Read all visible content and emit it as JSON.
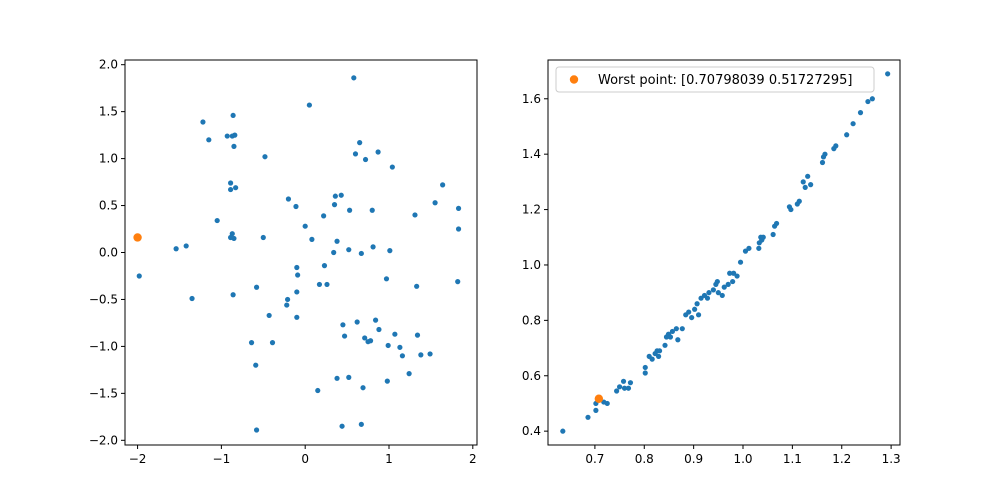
{
  "chart_data": [
    {
      "type": "scatter",
      "title": "",
      "xlabel": "",
      "ylabel": "",
      "xlim": [
        -2.15,
        2.05
      ],
      "ylim": [
        -2.05,
        2.05
      ],
      "xticks": [
        -2,
        -1,
        0,
        1,
        2
      ],
      "xtick_labels": [
        "−2",
        "−1",
        "0",
        "1",
        "2"
      ],
      "yticks": [
        -2.0,
        -1.5,
        -1.0,
        -0.5,
        0.0,
        0.5,
        1.0,
        1.5,
        2.0
      ],
      "ytick_labels": [
        "−2.0",
        "−1.5",
        "−1.0",
        "−0.5",
        "0.0",
        "0.5",
        "1.0",
        "1.5",
        "2.0"
      ],
      "grid": false,
      "series": [
        {
          "color": "#1f77b4",
          "points": [
            [
              0.58,
              1.86
            ],
            [
              0.05,
              1.57
            ],
            [
              -0.86,
              1.46
            ],
            [
              -1.22,
              1.39
            ],
            [
              -0.84,
              1.25
            ],
            [
              -0.87,
              1.24
            ],
            [
              -0.93,
              1.24
            ],
            [
              -1.15,
              1.2
            ],
            [
              0.65,
              1.17
            ],
            [
              -0.85,
              1.13
            ],
            [
              0.87,
              1.07
            ],
            [
              0.6,
              1.05
            ],
            [
              -0.48,
              1.02
            ],
            [
              0.72,
              0.99
            ],
            [
              1.04,
              0.91
            ],
            [
              1.64,
              0.72
            ],
            [
              -0.89,
              0.74
            ],
            [
              -0.83,
              0.69
            ],
            [
              -0.89,
              0.67
            ],
            [
              0.43,
              0.61
            ],
            [
              0.36,
              0.6
            ],
            [
              -0.2,
              0.57
            ],
            [
              1.55,
              0.53
            ],
            [
              0.35,
              0.51
            ],
            [
              -0.11,
              0.49
            ],
            [
              1.83,
              0.47
            ],
            [
              0.53,
              0.45
            ],
            [
              0.8,
              0.45
            ],
            [
              1.31,
              0.4
            ],
            [
              0.22,
              0.39
            ],
            [
              -1.05,
              0.34
            ],
            [
              0.0,
              0.28
            ],
            [
              1.83,
              0.25
            ],
            [
              -0.87,
              0.2
            ],
            [
              -0.89,
              0.16
            ],
            [
              -0.85,
              0.15
            ],
            [
              -0.5,
              0.16
            ],
            [
              0.08,
              0.14
            ],
            [
              0.38,
              0.12
            ],
            [
              0.81,
              0.06
            ],
            [
              1.01,
              0.02
            ],
            [
              -1.54,
              0.04
            ],
            [
              -1.42,
              0.07
            ],
            [
              0.52,
              0.03
            ],
            [
              0.34,
              0.0
            ],
            [
              0.67,
              -0.01
            ],
            [
              -0.1,
              -0.16
            ],
            [
              0.23,
              -0.14
            ],
            [
              -1.98,
              -0.25
            ],
            [
              -0.09,
              -0.24
            ],
            [
              0.97,
              -0.28
            ],
            [
              1.82,
              -0.31
            ],
            [
              0.17,
              -0.34
            ],
            [
              0.26,
              -0.34
            ],
            [
              -0.58,
              -0.37
            ],
            [
              1.33,
              -0.36
            ],
            [
              -0.1,
              -0.42
            ],
            [
              -0.86,
              -0.45
            ],
            [
              -1.35,
              -0.49
            ],
            [
              -0.21,
              -0.5
            ],
            [
              -0.22,
              -0.56
            ],
            [
              -0.43,
              -0.67
            ],
            [
              -0.1,
              -0.69
            ],
            [
              0.84,
              -0.72
            ],
            [
              0.62,
              -0.74
            ],
            [
              0.45,
              -0.77
            ],
            [
              0.88,
              -0.82
            ],
            [
              1.07,
              -0.87
            ],
            [
              0.47,
              -0.89
            ],
            [
              1.34,
              -0.88
            ],
            [
              0.71,
              -0.91
            ],
            [
              0.75,
              -0.95
            ],
            [
              0.78,
              -0.94
            ],
            [
              -0.64,
              -0.96
            ],
            [
              -0.39,
              -0.96
            ],
            [
              0.99,
              -0.99
            ],
            [
              1.13,
              -1.01
            ],
            [
              1.16,
              -1.1
            ],
            [
              1.49,
              -1.08
            ],
            [
              1.38,
              -1.09
            ],
            [
              -0.59,
              -1.2
            ],
            [
              1.24,
              -1.29
            ],
            [
              0.52,
              -1.33
            ],
            [
              0.38,
              -1.34
            ],
            [
              0.69,
              -1.44
            ],
            [
              0.98,
              -1.37
            ],
            [
              0.15,
              -1.47
            ],
            [
              0.44,
              -1.85
            ],
            [
              0.67,
              -1.83
            ],
            [
              -0.58,
              -1.89
            ]
          ]
        },
        {
          "color": "#ff7f0e",
          "points": [
            [
              -2.0,
              0.16
            ]
          ]
        }
      ]
    },
    {
      "type": "scatter",
      "title": "",
      "xlabel": "",
      "ylabel": "",
      "xlim": [
        0.605,
        1.318
      ],
      "ylim": [
        0.35,
        1.74
      ],
      "xticks": [
        0.7,
        0.8,
        0.9,
        1.0,
        1.1,
        1.2,
        1.3
      ],
      "xtick_labels": [
        "0.7",
        "0.8",
        "0.9",
        "1.0",
        "1.1",
        "1.2",
        "1.3"
      ],
      "yticks": [
        0.4,
        0.6,
        0.8,
        1.0,
        1.2,
        1.4,
        1.6
      ],
      "ytick_labels": [
        "0.4",
        "0.6",
        "0.8",
        "1.0",
        "1.2",
        "1.4",
        "1.6"
      ],
      "grid": false,
      "legend": {
        "placement": "upper-left",
        "entries": [
          {
            "label": "Worst point: [0.70798039 0.51727295]",
            "color": "#ff7f0e"
          }
        ]
      },
      "series": [
        {
          "color": "#1f77b4",
          "points": [
            [
              0.635,
              0.4
            ],
            [
              0.686,
              0.45
            ],
            [
              0.702,
              0.475
            ],
            [
              0.702,
              0.5
            ],
            [
              0.718,
              0.505
            ],
            [
              0.725,
              0.5
            ],
            [
              0.744,
              0.545
            ],
            [
              0.75,
              0.56
            ],
            [
              0.758,
              0.58
            ],
            [
              0.76,
              0.555
            ],
            [
              0.768,
              0.555
            ],
            [
              0.772,
              0.575
            ],
            [
              0.802,
              0.61
            ],
            [
              0.802,
              0.63
            ],
            [
              0.81,
              0.67
            ],
            [
              0.816,
              0.66
            ],
            [
              0.822,
              0.68
            ],
            [
              0.826,
              0.69
            ],
            [
              0.831,
              0.69
            ],
            [
              0.829,
              0.67
            ],
            [
              0.842,
              0.71
            ],
            [
              0.845,
              0.74
            ],
            [
              0.849,
              0.75
            ],
            [
              0.853,
              0.74
            ],
            [
              0.857,
              0.76
            ],
            [
              0.865,
              0.77
            ],
            [
              0.868,
              0.73
            ],
            [
              0.877,
              0.77
            ],
            [
              0.884,
              0.82
            ],
            [
              0.89,
              0.83
            ],
            [
              0.896,
              0.81
            ],
            [
              0.902,
              0.84
            ],
            [
              0.907,
              0.86
            ],
            [
              0.91,
              0.82
            ],
            [
              0.915,
              0.88
            ],
            [
              0.922,
              0.89
            ],
            [
              0.928,
              0.88
            ],
            [
              0.931,
              0.9
            ],
            [
              0.94,
              0.91
            ],
            [
              0.945,
              0.93
            ],
            [
              0.948,
              0.94
            ],
            [
              0.95,
              0.9
            ],
            [
              0.958,
              0.89
            ],
            [
              0.962,
              0.92
            ],
            [
              0.97,
              0.93
            ],
            [
              0.973,
              0.97
            ],
            [
              0.979,
              0.94
            ],
            [
              0.981,
              0.97
            ],
            [
              0.988,
              0.96
            ],
            [
              0.995,
              1.01
            ],
            [
              1.005,
              1.05
            ],
            [
              1.012,
              1.06
            ],
            [
              1.032,
              1.06
            ],
            [
              1.033,
              1.08
            ],
            [
              1.036,
              1.1
            ],
            [
              1.038,
              1.09
            ],
            [
              1.041,
              1.1
            ],
            [
              1.061,
              1.11
            ],
            [
              1.064,
              1.14
            ],
            [
              1.068,
              1.15
            ],
            [
              1.094,
              1.21
            ],
            [
              1.097,
              1.2
            ],
            [
              1.11,
              1.22
            ],
            [
              1.114,
              1.23
            ],
            [
              1.122,
              1.3
            ],
            [
              1.126,
              1.28
            ],
            [
              1.131,
              1.32
            ],
            [
              1.137,
              1.29
            ],
            [
              1.161,
              1.37
            ],
            [
              1.163,
              1.39
            ],
            [
              1.166,
              1.4
            ],
            [
              1.184,
              1.42
            ],
            [
              1.188,
              1.43
            ],
            [
              1.21,
              1.47
            ],
            [
              1.223,
              1.51
            ],
            [
              1.238,
              1.55
            ],
            [
              1.253,
              1.59
            ],
            [
              1.262,
              1.6
            ],
            [
              1.293,
              1.69
            ]
          ]
        },
        {
          "color": "#ff7f0e",
          "points": [
            [
              0.708,
              0.517
            ]
          ]
        }
      ]
    }
  ]
}
